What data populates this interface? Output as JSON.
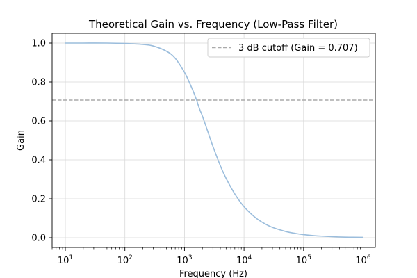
{
  "chart_data": {
    "type": "line",
    "title": "Theoretical Gain vs. Frequency (Low-Pass Filter)",
    "xlabel": "Frequency (Hz)",
    "ylabel": "Gain",
    "xscale": "log",
    "xlim": [
      6,
      1600000
    ],
    "ylim": [
      -0.05,
      1.05
    ],
    "x_ticks": [
      {
        "base": "10",
        "exp": "1",
        "value": 10
      },
      {
        "base": "10",
        "exp": "2",
        "value": 100
      },
      {
        "base": "10",
        "exp": "3",
        "value": 1000
      },
      {
        "base": "10",
        "exp": "4",
        "value": 10000
      },
      {
        "base": "10",
        "exp": "5",
        "value": 100000
      },
      {
        "base": "10",
        "exp": "6",
        "value": 1000000
      }
    ],
    "y_ticks": [
      "0.0",
      "0.2",
      "0.4",
      "0.6",
      "0.8",
      "1.0"
    ],
    "grid": true,
    "legend": {
      "position": "upper-right",
      "entries": [
        "3 dB cutoff (Gain = 0.707)"
      ]
    },
    "series": [
      {
        "color": "#9bbddc",
        "x": [
          10,
          20,
          50,
          100,
          200,
          300,
          500,
          700,
          1000,
          1200,
          1500,
          1800,
          2000,
          2500,
          3000,
          4000,
          5000,
          7000,
          10000,
          15000,
          20000,
          30000,
          50000,
          70000,
          100000,
          200000,
          500000,
          1000000
        ],
        "y": [
          1.0,
          1.0,
          1.0,
          0.998,
          0.993,
          0.985,
          0.958,
          0.922,
          0.85,
          0.8,
          0.73,
          0.66,
          0.625,
          0.54,
          0.47,
          0.37,
          0.305,
          0.225,
          0.159,
          0.107,
          0.08,
          0.053,
          0.032,
          0.023,
          0.016,
          0.008,
          0.003,
          0.002
        ]
      }
    ],
    "reference_lines": [
      {
        "y": 0.707,
        "color": "#aaaaaa",
        "style": "dashed"
      }
    ]
  }
}
